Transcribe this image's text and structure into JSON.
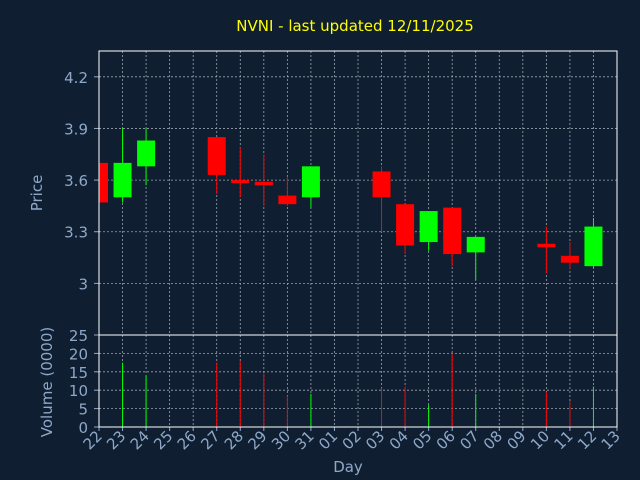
{
  "chart_data": {
    "type": "candlestick",
    "title": "NVNI - last updated 12/11/2025",
    "xlabel": "Day",
    "ylabel_price": "Price",
    "ylabel_volume": "Volume (0000)",
    "price_ylim": [
      2.7,
      4.35
    ],
    "volume_ylim": [
      0,
      25
    ],
    "price_ticks": [
      "4.2",
      "3.9",
      "3.6",
      "3.3",
      "3"
    ],
    "price_tick_values": [
      4.2,
      3.9,
      3.6,
      3.3,
      3.0
    ],
    "volume_ticks": [
      "25",
      "20",
      "15",
      "10",
      "5",
      "0"
    ],
    "volume_tick_values": [
      25,
      20,
      15,
      10,
      5,
      0
    ],
    "x_tick_labels": [
      "22",
      "23",
      "24",
      "25",
      "26",
      "27",
      "28",
      "29",
      "30",
      "31",
      "01",
      "02",
      "03",
      "04",
      "05",
      "06",
      "07",
      "08",
      "09",
      "10",
      "11",
      "12",
      "13"
    ],
    "grid": true,
    "colors": {
      "background": "#0f1f31",
      "grid": "#9aa3ad",
      "title": "#ffff00",
      "axis_text": "#8fa8c8",
      "up": "#00ff00",
      "down": "#ff0000"
    },
    "candles": [
      {
        "day": "22",
        "open": 3.7,
        "high": 3.7,
        "low": 3.47,
        "close": 3.47,
        "volume": 0
      },
      {
        "day": "23",
        "open": 3.5,
        "high": 3.9,
        "low": 3.47,
        "close": 3.7,
        "volume": 17.5
      },
      {
        "day": "24",
        "open": 3.68,
        "high": 3.9,
        "low": 3.57,
        "close": 3.83,
        "volume": 14
      },
      {
        "day": "27",
        "open": 3.85,
        "high": 3.85,
        "low": 3.52,
        "close": 3.63,
        "volume": 17.5
      },
      {
        "day": "28",
        "open": 3.6,
        "high": 3.79,
        "low": 3.5,
        "close": 3.59,
        "volume": 18
      },
      {
        "day": "29",
        "open": 3.59,
        "high": 3.75,
        "low": 3.45,
        "close": 3.57,
        "volume": 14.5
      },
      {
        "day": "30",
        "open": 3.51,
        "high": 3.62,
        "low": 3.45,
        "close": 3.46,
        "volume": 8.5
      },
      {
        "day": "31",
        "open": 3.5,
        "high": 3.68,
        "low": 3.44,
        "close": 3.68,
        "volume": 9
      },
      {
        "day": "03",
        "open": 3.65,
        "high": 3.68,
        "low": 3.3,
        "close": 3.5,
        "volume": 10.5
      },
      {
        "day": "04",
        "open": 3.46,
        "high": 3.46,
        "low": 3.17,
        "close": 3.22,
        "volume": 11
      },
      {
        "day": "05",
        "open": 3.24,
        "high": 3.42,
        "low": 3.19,
        "close": 3.42,
        "volume": 6
      },
      {
        "day": "06",
        "open": 3.44,
        "high": 3.44,
        "low": 3.1,
        "close": 3.17,
        "volume": 20
      },
      {
        "day": "07",
        "open": 3.18,
        "high": 3.27,
        "low": 3.02,
        "close": 3.27,
        "volume": 9
      },
      {
        "day": "10",
        "open": 3.23,
        "high": 3.33,
        "low": 3.06,
        "close": 3.21,
        "volume": 9.5
      },
      {
        "day": "11",
        "open": 3.16,
        "high": 3.24,
        "low": 3.08,
        "close": 3.12,
        "volume": 7
      },
      {
        "day": "12",
        "open": 3.1,
        "high": 3.38,
        "low": 3.09,
        "close": 3.33,
        "volume": 11
      }
    ]
  }
}
